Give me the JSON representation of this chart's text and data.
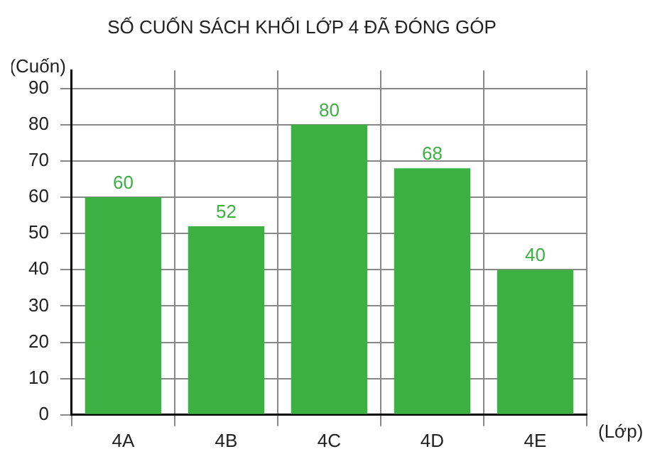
{
  "chart_data": {
    "type": "bar",
    "title": "SỐ CUỐN SÁCH KHỐI LỚP 4 ĐÃ ĐÓNG GÓP",
    "ylabel": "(Cuốn)",
    "xlabel": "(Lớp)",
    "categories": [
      "4A",
      "4B",
      "4C",
      "4D",
      "4E"
    ],
    "values": [
      60,
      52,
      80,
      68,
      40
    ],
    "color": "#3cb043",
    "ylim": [
      0,
      95
    ],
    "yticks": [
      0,
      10,
      20,
      30,
      40,
      50,
      60,
      70,
      80,
      90
    ],
    "grid": true,
    "data_labels": true
  }
}
